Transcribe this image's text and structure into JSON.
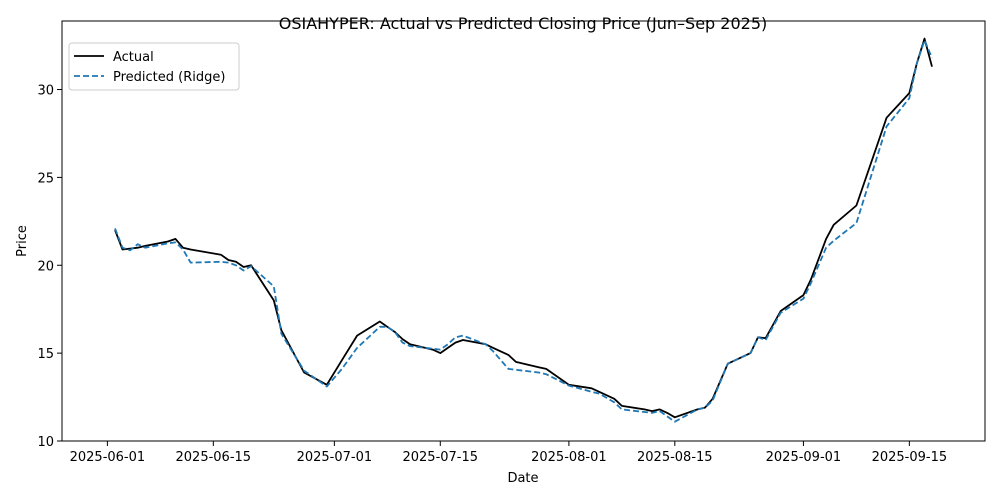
{
  "chart_data": {
    "type": "line",
    "title": "OSIAHYPER: Actual vs Predicted Closing Price (Jun–Sep 2025)",
    "xlabel": "Date",
    "ylabel": "Price",
    "xlim": [
      "2025-05-26",
      "2025-09-25"
    ],
    "ylim": [
      10,
      33.9
    ],
    "x_ticks": [
      "2025-06-01",
      "2025-06-15",
      "2025-07-01",
      "2025-07-15",
      "2025-08-01",
      "2025-08-15",
      "2025-09-01",
      "2025-09-15"
    ],
    "y_ticks": [
      10,
      15,
      20,
      25,
      30
    ],
    "grid": false,
    "legend_position": "top-left",
    "series": [
      {
        "name": "Actual",
        "color": "#000000",
        "style": "solid",
        "x": [
          "2025-06-02",
          "2025-06-03",
          "2025-06-04",
          "2025-06-05",
          "2025-06-06",
          "2025-06-09",
          "2025-06-10",
          "2025-06-11",
          "2025-06-12",
          "2025-06-16",
          "2025-06-17",
          "2025-06-18",
          "2025-06-19",
          "2025-06-20",
          "2025-06-23",
          "2025-06-24",
          "2025-06-27",
          "2025-06-30",
          "2025-07-02",
          "2025-07-04",
          "2025-07-07",
          "2025-07-08",
          "2025-07-09",
          "2025-07-10",
          "2025-07-11",
          "2025-07-14",
          "2025-07-15",
          "2025-07-16",
          "2025-07-17",
          "2025-07-18",
          "2025-07-21",
          "2025-07-22",
          "2025-07-24",
          "2025-07-25",
          "2025-07-28",
          "2025-07-29",
          "2025-08-01",
          "2025-08-04",
          "2025-08-05",
          "2025-08-07",
          "2025-08-08",
          "2025-08-11",
          "2025-08-12",
          "2025-08-13",
          "2025-08-14",
          "2025-08-15",
          "2025-08-18",
          "2025-08-19",
          "2025-08-20",
          "2025-08-22",
          "2025-08-25",
          "2025-08-26",
          "2025-08-27",
          "2025-08-29",
          "2025-09-01",
          "2025-09-02",
          "2025-09-04",
          "2025-09-05",
          "2025-09-08",
          "2025-09-12",
          "2025-09-15",
          "2025-09-16",
          "2025-09-17",
          "2025-09-18"
        ],
        "values": [
          22.0,
          20.9,
          20.95,
          21.0,
          21.1,
          21.35,
          21.5,
          21.0,
          20.9,
          20.6,
          20.3,
          20.2,
          19.9,
          20.0,
          18.0,
          16.3,
          13.9,
          13.2,
          14.6,
          16.0,
          16.8,
          16.5,
          16.2,
          15.8,
          15.5,
          15.2,
          15.0,
          15.3,
          15.6,
          15.75,
          15.5,
          15.3,
          14.9,
          14.5,
          14.2,
          14.1,
          13.2,
          13.0,
          12.8,
          12.4,
          12.0,
          11.8,
          11.7,
          11.8,
          11.6,
          11.35,
          11.8,
          11.9,
          12.4,
          14.4,
          15.0,
          15.9,
          15.85,
          17.4,
          18.3,
          19.2,
          21.5,
          22.3,
          23.4,
          28.4,
          29.8,
          31.5,
          32.9,
          31.3
        ]
      },
      {
        "name": "Predicted (Ridge)",
        "color": "#1f77b4",
        "style": "dashed",
        "x": [
          "2025-06-02",
          "2025-06-03",
          "2025-06-04",
          "2025-06-05",
          "2025-06-06",
          "2025-06-09",
          "2025-06-10",
          "2025-06-11",
          "2025-06-12",
          "2025-06-16",
          "2025-06-17",
          "2025-06-18",
          "2025-06-19",
          "2025-06-20",
          "2025-06-23",
          "2025-06-24",
          "2025-06-27",
          "2025-06-30",
          "2025-07-02",
          "2025-07-04",
          "2025-07-07",
          "2025-07-08",
          "2025-07-09",
          "2025-07-10",
          "2025-07-11",
          "2025-07-14",
          "2025-07-15",
          "2025-07-16",
          "2025-07-17",
          "2025-07-18",
          "2025-07-21",
          "2025-07-22",
          "2025-07-24",
          "2025-07-25",
          "2025-07-28",
          "2025-07-29",
          "2025-08-01",
          "2025-08-04",
          "2025-08-05",
          "2025-08-07",
          "2025-08-08",
          "2025-08-11",
          "2025-08-12",
          "2025-08-13",
          "2025-08-14",
          "2025-08-15",
          "2025-08-18",
          "2025-08-19",
          "2025-08-20",
          "2025-08-22",
          "2025-08-25",
          "2025-08-26",
          "2025-08-27",
          "2025-08-29",
          "2025-09-01",
          "2025-09-02",
          "2025-09-04",
          "2025-09-05",
          "2025-09-08",
          "2025-09-12",
          "2025-09-15",
          "2025-09-16",
          "2025-09-17",
          "2025-09-18"
        ],
        "values": [
          22.1,
          21.0,
          20.85,
          21.2,
          21.0,
          21.25,
          21.3,
          20.9,
          20.15,
          20.2,
          20.15,
          20.0,
          19.7,
          19.95,
          18.8,
          16.1,
          14.0,
          13.1,
          14.1,
          15.3,
          16.5,
          16.5,
          16.2,
          15.6,
          15.4,
          15.25,
          15.2,
          15.5,
          15.9,
          16.0,
          15.5,
          15.1,
          14.1,
          14.05,
          13.9,
          13.8,
          13.15,
          12.8,
          12.7,
          12.2,
          11.8,
          11.65,
          11.6,
          11.7,
          11.4,
          11.1,
          11.8,
          11.9,
          12.3,
          14.4,
          15.0,
          15.9,
          15.75,
          17.3,
          18.1,
          19.0,
          21.0,
          21.4,
          22.4,
          27.9,
          29.5,
          31.5,
          32.8,
          31.8
        ]
      }
    ]
  }
}
